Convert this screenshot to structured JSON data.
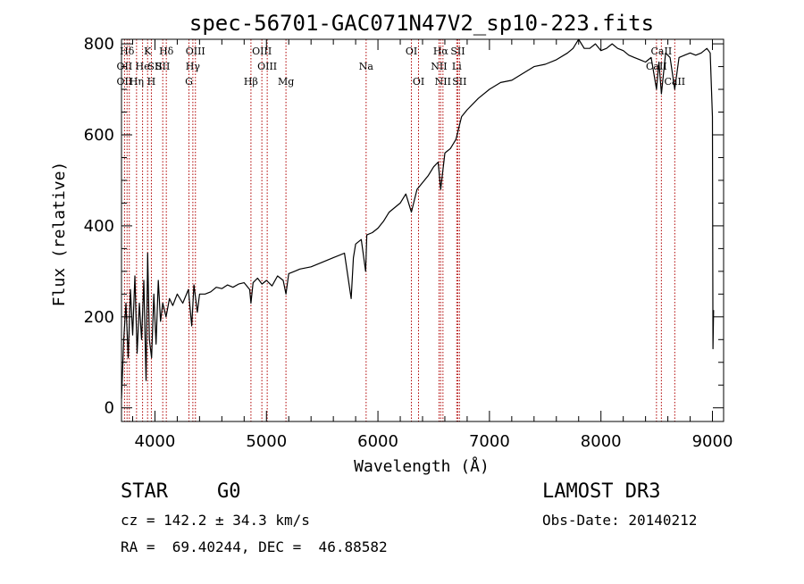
{
  "chart_data": {
    "type": "line",
    "title": "spec-56701-GAC071N47V2_sp10-223.fits",
    "xlabel": "Wavelength (Å)",
    "ylabel": "Flux (relative)",
    "xlim": [
      3700,
      9100
    ],
    "ylim": [
      -30,
      810
    ],
    "x_ticks": [
      4000,
      5000,
      6000,
      7000,
      8000,
      9000
    ],
    "x_tick_labels": [
      "4000",
      "5000",
      "6000",
      "7000",
      "8000",
      "9000"
    ],
    "y_ticks": [
      0,
      200,
      400,
      600,
      800
    ],
    "y_tick_labels": [
      "0",
      "200",
      "400",
      "600",
      "800"
    ],
    "grid": false,
    "series": [
      {
        "name": "spectrum",
        "color": "#000000",
        "x": [
          3700,
          3720,
          3740,
          3760,
          3780,
          3800,
          3820,
          3840,
          3860,
          3880,
          3900,
          3920,
          3935,
          3950,
          3970,
          3990,
          4010,
          4030,
          4050,
          4070,
          4100,
          4130,
          4160,
          4200,
          4250,
          4300,
          4330,
          4350,
          4380,
          4400,
          4450,
          4500,
          4550,
          4600,
          4650,
          4700,
          4750,
          4800,
          4850,
          4861,
          4880,
          4920,
          4960,
          5000,
          5050,
          5100,
          5150,
          5175,
          5200,
          5250,
          5300,
          5400,
          5500,
          5600,
          5700,
          5760,
          5780,
          5800,
          5850,
          5890,
          5900,
          5950,
          6000,
          6050,
          6100,
          6150,
          6200,
          6250,
          6300,
          6350,
          6400,
          6450,
          6500,
          6540,
          6563,
          6600,
          6650,
          6700,
          6750,
          6800,
          6900,
          7000,
          7100,
          7200,
          7300,
          7400,
          7500,
          7600,
          7700,
          7750,
          7800,
          7850,
          7900,
          7950,
          8000,
          8050,
          8100,
          8150,
          8200,
          8250,
          8300,
          8350,
          8400,
          8450,
          8498,
          8520,
          8542,
          8580,
          8620,
          8662,
          8700,
          8750,
          8800,
          8850,
          8900,
          8950,
          8980,
          9000,
          9005,
          9010
        ],
        "y": [
          20,
          150,
          230,
          110,
          260,
          160,
          290,
          120,
          230,
          150,
          280,
          60,
          340,
          150,
          110,
          250,
          140,
          280,
          190,
          230,
          200,
          240,
          225,
          250,
          230,
          260,
          180,
          270,
          210,
          250,
          250,
          255,
          265,
          262,
          270,
          265,
          272,
          275,
          260,
          230,
          275,
          285,
          272,
          280,
          268,
          290,
          280,
          250,
          295,
          300,
          305,
          310,
          320,
          330,
          340,
          240,
          330,
          360,
          370,
          300,
          380,
          385,
          395,
          410,
          430,
          440,
          450,
          470,
          430,
          480,
          495,
          510,
          530,
          540,
          480,
          560,
          570,
          590,
          640,
          655,
          680,
          700,
          715,
          720,
          735,
          750,
          755,
          765,
          780,
          790,
          810,
          790,
          790,
          800,
          785,
          790,
          800,
          790,
          785,
          775,
          770,
          765,
          760,
          770,
          700,
          760,
          690,
          780,
          770,
          700,
          770,
          775,
          780,
          775,
          780,
          790,
          780,
          640,
          130,
          215
        ]
      }
    ],
    "line_labels": [
      {
        "name": "Hδ",
        "x": 3750,
        "row": 1
      },
      {
        "name": "OII",
        "x": 3727,
        "row": 2
      },
      {
        "name": "OII",
        "x": 3727,
        "row": 3
      },
      {
        "name": "He",
        "x": 3889,
        "row": 2
      },
      {
        "name": "Hη",
        "x": 3835,
        "row": 3
      },
      {
        "name": "K",
        "x": 3934,
        "row": 1
      },
      {
        "name": "SII",
        "x": 4000,
        "row": 2
      },
      {
        "name": "H",
        "x": 3968,
        "row": 3
      },
      {
        "name": "Hδ",
        "x": 4102,
        "row": 1
      },
      {
        "name": "SII",
        "x": 4070,
        "row": 2
      },
      {
        "name": "OIII",
        "x": 4363,
        "row": 1
      },
      {
        "name": "Hγ",
        "x": 4340,
        "row": 2
      },
      {
        "name": "G",
        "x": 4305,
        "row": 3
      },
      {
        "name": "Hβ",
        "x": 4861,
        "row": 3
      },
      {
        "name": "OIII",
        "x": 4959,
        "row": 1
      },
      {
        "name": "OIII",
        "x": 5007,
        "row": 2
      },
      {
        "name": "Mg",
        "x": 5175,
        "row": 3
      },
      {
        "name": "Na",
        "x": 5894,
        "row": 2
      },
      {
        "name": "OI",
        "x": 6300,
        "row": 1
      },
      {
        "name": "OI",
        "x": 6364,
        "row": 3
      },
      {
        "name": "Hα",
        "x": 6563,
        "row": 1
      },
      {
        "name": "SII",
        "x": 6716,
        "row": 1
      },
      {
        "name": "NII",
        "x": 6548,
        "row": 2
      },
      {
        "name": "Li",
        "x": 6707,
        "row": 2
      },
      {
        "name": "NII",
        "x": 6583,
        "row": 3
      },
      {
        "name": "SII",
        "x": 6731,
        "row": 3
      },
      {
        "name": "CaII",
        "x": 8542,
        "row": 1
      },
      {
        "name": "CaII",
        "x": 8498,
        "row": 2
      },
      {
        "name": "CaII",
        "x": 8662,
        "row": 3
      }
    ],
    "line_marker_x": [
      3727,
      3750,
      3770,
      3835,
      3889,
      3934,
      3968,
      4070,
      4102,
      4305,
      4340,
      4363,
      4861,
      4959,
      5007,
      5175,
      5894,
      6300,
      6364,
      6548,
      6563,
      6583,
      6707,
      6716,
      6731,
      8498,
      8542,
      8662
    ],
    "line_marker_color": "#b00000"
  },
  "info": {
    "object_class": "STAR",
    "subclass": "G0",
    "cz": "cz = 142.2 ± 34.3 km/s",
    "coords": "RA =  69.40244, DEC =  46.88582",
    "survey": "LAMOST DR3",
    "obs_date": "Obs-Date: 20140212"
  }
}
